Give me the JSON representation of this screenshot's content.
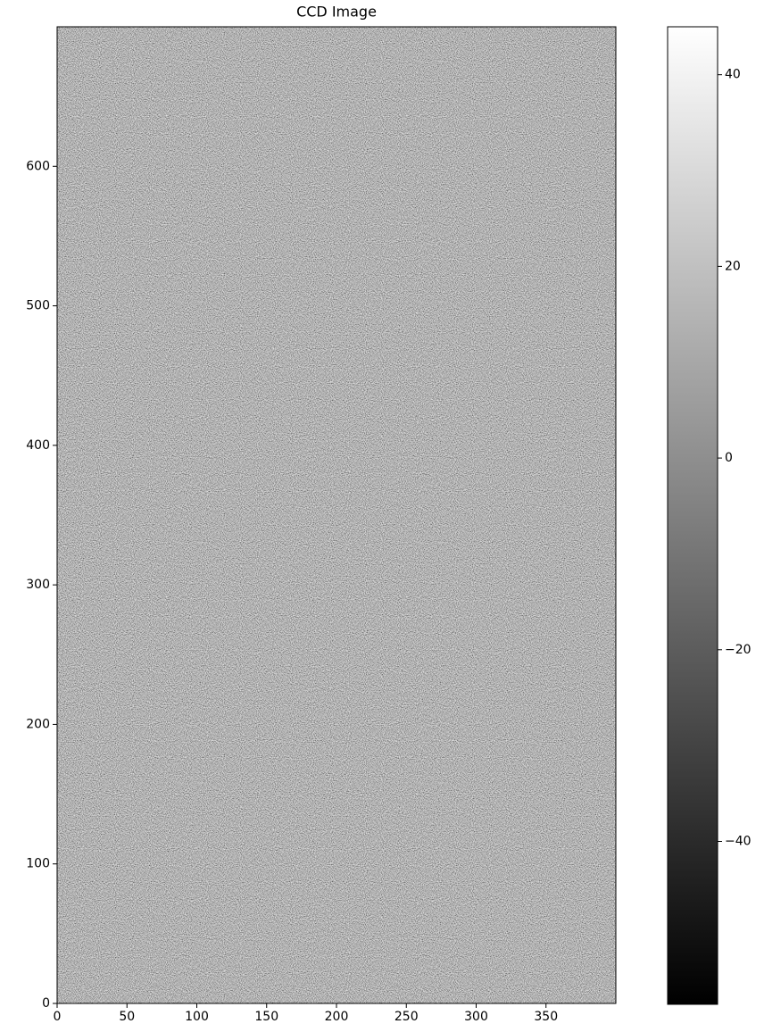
{
  "chart_data": {
    "type": "image",
    "title": "CCD Image",
    "xlim": [
      0,
      400
    ],
    "xticks": [
      0,
      50,
      100,
      150,
      200,
      250,
      300,
      350
    ],
    "ylim": [
      0,
      700
    ],
    "yticks": [
      0,
      100,
      200,
      300,
      400,
      500,
      600
    ],
    "colormap": [
      "#000000",
      "#ffffff"
    ],
    "clim": [
      -57,
      45
    ],
    "cticks": [
      {
        "value": -40,
        "label": "−40"
      },
      {
        "value": -20,
        "label": "−20"
      },
      0,
      20,
      40
    ]
  }
}
